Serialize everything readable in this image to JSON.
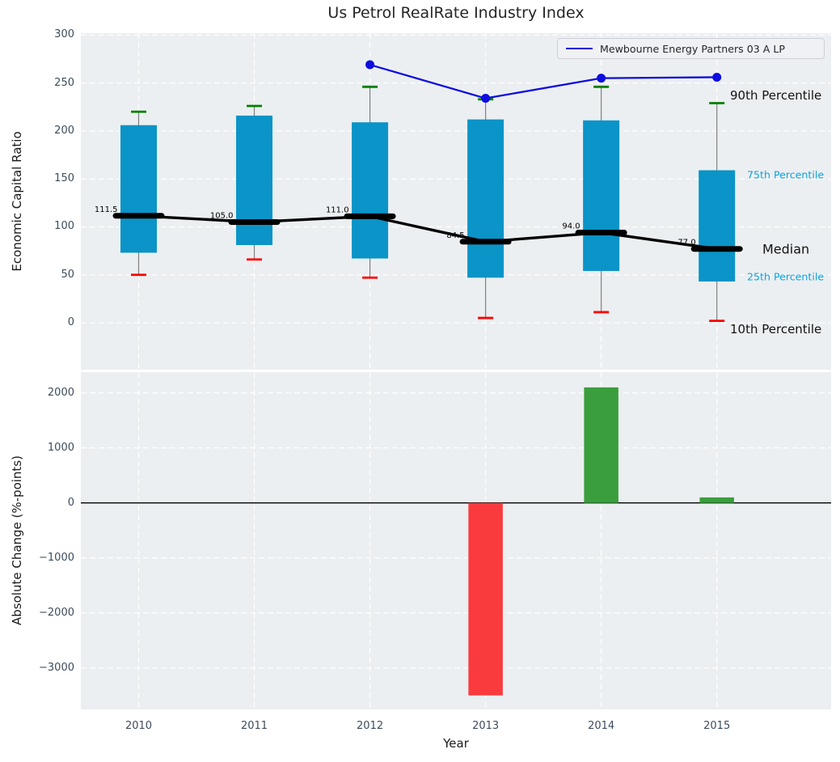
{
  "page": {
    "title": "Us Petrol RealRate Industry Index"
  },
  "legend": {
    "label": "Mewbourne Energy Partners 03 A LP"
  },
  "annotations": {
    "p90": "90th Percentile",
    "p75": "75th Percentile",
    "median": "Median",
    "p25": "25th Percentile",
    "p10": "10th Percentile"
  },
  "colors": {
    "plot_bg": "#eceff1",
    "grid": "#ffffff",
    "box_fill": "#0a94c8",
    "whisker": "#7f7f7f",
    "p90_cap": "#008000",
    "p10_cap": "#ff0000",
    "median_line": "#000000",
    "company_line": "#0d0de0",
    "bar_positive": "#3a9e3d",
    "bar_negative": "#fa3b3e",
    "tick_label": "#3d4c5c",
    "percentile_cyan": "#0ea2dc",
    "zero_line": "#000000"
  },
  "chart_data": [
    {
      "type": "boxplot",
      "title": "Us Petrol RealRate Industry Index",
      "xlabel": "",
      "ylabel": "Economic Capital Ratio",
      "ylim": [
        -49,
        305
      ],
      "yticks": [
        300,
        250,
        200,
        150,
        100,
        50,
        0
      ],
      "grid": true,
      "legend_position": "upper right",
      "categories": [
        "2010",
        "2011",
        "2012",
        "2013",
        "2014",
        "2015"
      ],
      "boxes": [
        {
          "year": "2010",
          "p10": 50,
          "p25": 73,
          "median": 111.5,
          "p75": 206,
          "p90": 220
        },
        {
          "year": "2011",
          "p10": 66,
          "p25": 81,
          "median": 105.0,
          "p75": 216,
          "p90": 226
        },
        {
          "year": "2012",
          "p10": 47,
          "p25": 67,
          "median": 111.0,
          "p75": 209,
          "p90": 246
        },
        {
          "year": "2013",
          "p10": 5,
          "p25": 47,
          "median": 84.5,
          "p75": 212,
          "p90": 233
        },
        {
          "year": "2014",
          "p10": 11,
          "p25": 54,
          "median": 94.0,
          "p75": 211,
          "p90": 246
        },
        {
          "year": "2015",
          "p10": 2,
          "p25": 43,
          "median": 77.0,
          "p75": 159,
          "p90": 229
        }
      ],
      "median_labels": [
        "111.5",
        "105.0",
        "111.0",
        "84.5",
        "94.0",
        "77.0"
      ],
      "series": [
        {
          "name": "Mewbourne Energy Partners 03 A LP",
          "x": [
            "2012",
            "2013",
            "2014",
            "2015"
          ],
          "values": [
            269,
            234,
            255,
            256
          ]
        }
      ]
    },
    {
      "type": "bar",
      "xlabel": "Year",
      "ylabel": "Absolute Change (%-points)",
      "ylim": [
        -3760,
        2380
      ],
      "yticks": [
        2000,
        1000,
        0,
        -1000,
        -2000,
        -3000
      ],
      "grid": true,
      "categories": [
        "2010",
        "2011",
        "2012",
        "2013",
        "2014",
        "2015"
      ],
      "values": [
        null,
        null,
        null,
        -3500,
        2100,
        100
      ]
    }
  ]
}
